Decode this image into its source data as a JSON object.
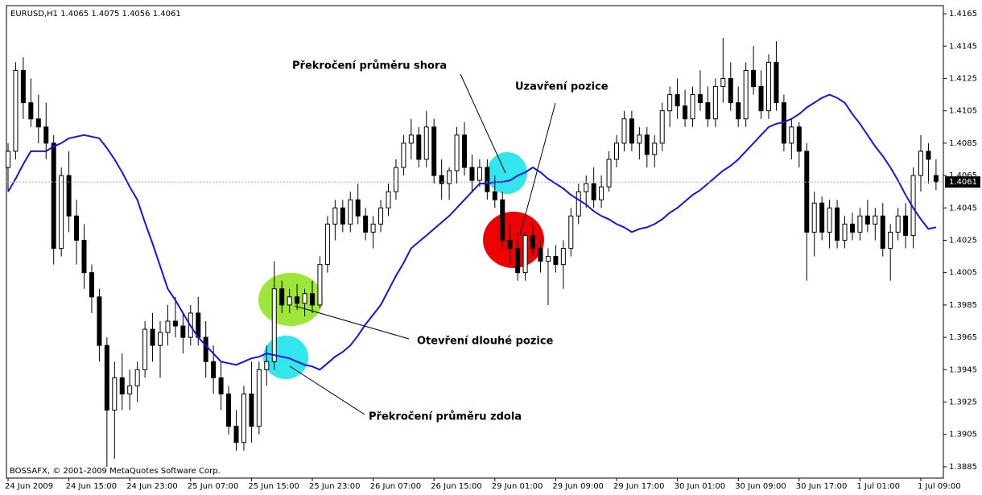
{
  "chart_data": {
    "type": "candlestick",
    "title": "EURUSD,H1  1.4065 1.4075 1.4056 1.4061",
    "footer": "BOSSAFX, © 2001-2009 MetaQuotes Software Corp.",
    "annotations": [
      "Překročení průměru shora",
      "Uzavření pozice",
      "Otevření dlouhé pozice",
      "Překročení průměru zdola"
    ],
    "ylim": [
      1.3878,
      1.417
    ],
    "yticks": [
      1.3885,
      1.3905,
      1.3925,
      1.3945,
      1.3965,
      1.3985,
      1.4005,
      1.4025,
      1.4045,
      1.4065,
      1.4085,
      1.4105,
      1.4125,
      1.4145,
      1.4165
    ],
    "up_color": "#ffffff",
    "down_color": "#000000",
    "categories": [
      "24 Jun 2009",
      null,
      null,
      null,
      null,
      null,
      null,
      null,
      "24 Jun 15:00",
      null,
      null,
      null,
      null,
      null,
      null,
      null,
      "24 Jun 23:00",
      null,
      null,
      null,
      null,
      null,
      null,
      null,
      "25 Jun 07:00",
      null,
      null,
      null,
      null,
      null,
      null,
      null,
      "25 Jun 15:00",
      null,
      null,
      null,
      null,
      null,
      null,
      null,
      "25 Jun 23:00",
      null,
      null,
      null,
      null,
      null,
      null,
      null,
      "26 Jun 07:00",
      null,
      null,
      null,
      null,
      null,
      null,
      null,
      "26 Jun 15:00",
      null,
      null,
      null,
      null,
      null,
      null,
      null,
      "29 Jun 01:00",
      null,
      null,
      null,
      null,
      null,
      null,
      null,
      "29 Jun 09:00",
      null,
      null,
      null,
      null,
      null,
      null,
      null,
      "29 Jun 17:00",
      null,
      null,
      null,
      null,
      null,
      null,
      null,
      "30 Jun 01:00",
      null,
      null,
      null,
      null,
      null,
      null,
      null,
      "30 Jun 09:00",
      null,
      null,
      null,
      null,
      null,
      null,
      null,
      "30 Jun 17:00",
      null,
      null,
      null,
      null,
      null,
      null,
      null,
      "1 Jul 01:00",
      null,
      null,
      null,
      null,
      null,
      null,
      null,
      "1 Jul 09:00",
      null,
      null
    ],
    "candles": [
      [
        1.407,
        1.4085,
        1.4055,
        1.408
      ],
      [
        1.408,
        1.4135,
        1.4075,
        1.413
      ],
      [
        1.413,
        1.4138,
        1.41,
        1.411
      ],
      [
        1.411,
        1.4125,
        1.4095,
        1.41
      ],
      [
        1.41,
        1.4115,
        1.4085,
        1.4095
      ],
      [
        1.4095,
        1.411,
        1.4075,
        1.4085
      ],
      [
        1.4085,
        1.409,
        1.401,
        1.402
      ],
      [
        1.402,
        1.407,
        1.4015,
        1.4065
      ],
      [
        1.4065,
        1.408,
        1.403,
        1.404
      ],
      [
        1.404,
        1.405,
        1.401,
        1.4025
      ],
      [
        1.4025,
        1.4035,
        1.3995,
        1.4005
      ],
      [
        1.4005,
        1.401,
        1.398,
        1.399
      ],
      [
        1.399,
        1.3995,
        1.395,
        1.396
      ],
      [
        1.396,
        1.3965,
        1.3885,
        1.392
      ],
      [
        1.392,
        1.395,
        1.389,
        1.394
      ],
      [
        1.394,
        1.3955,
        1.392,
        1.393
      ],
      [
        1.393,
        1.3945,
        1.392,
        1.3935
      ],
      [
        1.3935,
        1.395,
        1.3925,
        1.3945
      ],
      [
        1.3945,
        1.3975,
        1.394,
        1.397
      ],
      [
        1.397,
        1.398,
        1.395,
        1.396
      ],
      [
        1.396,
        1.3975,
        1.394,
        1.3968
      ],
      [
        1.3968,
        1.3985,
        1.396,
        1.3975
      ],
      [
        1.3975,
        1.399,
        1.3965,
        1.3972
      ],
      [
        1.3972,
        1.398,
        1.3955,
        1.3965
      ],
      [
        1.3965,
        1.3985,
        1.396,
        1.398
      ],
      [
        1.398,
        1.399,
        1.396,
        1.3965
      ],
      [
        1.3965,
        1.3975,
        1.394,
        1.395
      ],
      [
        1.395,
        1.396,
        1.393,
        1.394
      ],
      [
        1.394,
        1.395,
        1.392,
        1.393
      ],
      [
        1.393,
        1.3935,
        1.3905,
        1.391
      ],
      [
        1.391,
        1.392,
        1.3895,
        1.39
      ],
      [
        1.39,
        1.3935,
        1.3895,
        1.393
      ],
      [
        1.393,
        1.395,
        1.39,
        1.391
      ],
      [
        1.391,
        1.395,
        1.3905,
        1.3945
      ],
      [
        1.3945,
        1.396,
        1.3935,
        1.395
      ],
      [
        1.395,
        1.4012,
        1.3945,
        1.3995
      ],
      [
        1.3995,
        1.4,
        1.398,
        1.3985
      ],
      [
        1.3985,
        1.3995,
        1.398,
        1.399
      ],
      [
        1.399,
        1.3998,
        1.3982,
        1.3986
      ],
      [
        1.3986,
        1.3995,
        1.3978,
        1.3992
      ],
      [
        1.3992,
        1.4,
        1.398,
        1.3985
      ],
      [
        1.3985,
        1.4015,
        1.3983,
        1.401
      ],
      [
        1.401,
        1.404,
        1.4005,
        1.4035
      ],
      [
        1.4035,
        1.405,
        1.4025,
        1.4045
      ],
      [
        1.4045,
        1.405,
        1.403,
        1.4035
      ],
      [
        1.4035,
        1.4055,
        1.403,
        1.405
      ],
      [
        1.405,
        1.406,
        1.4035,
        1.404
      ],
      [
        1.404,
        1.4045,
        1.4025,
        1.403
      ],
      [
        1.403,
        1.404,
        1.402,
        1.4035
      ],
      [
        1.4035,
        1.405,
        1.403,
        1.4045
      ],
      [
        1.4045,
        1.406,
        1.404,
        1.4055
      ],
      [
        1.4055,
        1.4075,
        1.405,
        1.407
      ],
      [
        1.407,
        1.409,
        1.4065,
        1.4085
      ],
      [
        1.4085,
        1.41,
        1.4075,
        1.409
      ],
      [
        1.409,
        1.4095,
        1.407,
        1.4075
      ],
      [
        1.4075,
        1.4105,
        1.407,
        1.4095
      ],
      [
        1.4095,
        1.41,
        1.406,
        1.4065
      ],
      [
        1.4065,
        1.4075,
        1.405,
        1.406
      ],
      [
        1.406,
        1.407,
        1.405,
        1.4068
      ],
      [
        1.4068,
        1.4095,
        1.406,
        1.409
      ],
      [
        1.409,
        1.4098,
        1.4065,
        1.407
      ],
      [
        1.407,
        1.4078,
        1.4055,
        1.4062
      ],
      [
        1.4062,
        1.4075,
        1.4058,
        1.407
      ],
      [
        1.407,
        1.4075,
        1.405,
        1.4055
      ],
      [
        1.4055,
        1.4065,
        1.4045,
        1.405
      ],
      [
        1.405,
        1.4055,
        1.402,
        1.4025
      ],
      [
        1.4025,
        1.4035,
        1.401,
        1.402
      ],
      [
        1.402,
        1.403,
        1.4,
        1.4005
      ],
      [
        1.4005,
        1.403,
        1.4,
        1.4028
      ],
      [
        1.4028,
        1.4035,
        1.4015,
        1.402
      ],
      [
        1.402,
        1.4025,
        1.4005,
        1.4012
      ],
      [
        1.4012,
        1.402,
        1.3985,
        1.4015
      ],
      [
        1.4015,
        1.4022,
        1.4005,
        1.401
      ],
      [
        1.401,
        1.4025,
        1.3995,
        1.402
      ],
      [
        1.402,
        1.4045,
        1.4015,
        1.404
      ],
      [
        1.404,
        1.406,
        1.4035,
        1.4055
      ],
      [
        1.4055,
        1.4065,
        1.4045,
        1.406
      ],
      [
        1.406,
        1.407,
        1.4045,
        1.405
      ],
      [
        1.405,
        1.4065,
        1.4045,
        1.4058
      ],
      [
        1.4058,
        1.408,
        1.4055,
        1.4075
      ],
      [
        1.4075,
        1.409,
        1.407,
        1.4085
      ],
      [
        1.4085,
        1.4105,
        1.408,
        1.41
      ],
      [
        1.41,
        1.4105,
        1.408,
        1.4085
      ],
      [
        1.4085,
        1.4095,
        1.4075,
        1.409
      ],
      [
        1.409,
        1.4095,
        1.407,
        1.4078
      ],
      [
        1.4078,
        1.409,
        1.407,
        1.4085
      ],
      [
        1.4085,
        1.411,
        1.408,
        1.4105
      ],
      [
        1.4105,
        1.412,
        1.4095,
        1.4115
      ],
      [
        1.4115,
        1.4125,
        1.41,
        1.4108
      ],
      [
        1.4108,
        1.4118,
        1.4095,
        1.41
      ],
      [
        1.41,
        1.412,
        1.4095,
        1.4115
      ],
      [
        1.4115,
        1.413,
        1.4105,
        1.411
      ],
      [
        1.411,
        1.412,
        1.4095,
        1.41
      ],
      [
        1.41,
        1.4125,
        1.4095,
        1.412
      ],
      [
        1.412,
        1.415,
        1.411,
        1.4125
      ],
      [
        1.4125,
        1.4135,
        1.4105,
        1.411
      ],
      [
        1.411,
        1.412,
        1.4095,
        1.41
      ],
      [
        1.41,
        1.4135,
        1.4095,
        1.413
      ],
      [
        1.413,
        1.4145,
        1.4115,
        1.412
      ],
      [
        1.412,
        1.413,
        1.41,
        1.4105
      ],
      [
        1.4105,
        1.414,
        1.41,
        1.4135
      ],
      [
        1.4135,
        1.4148,
        1.4105,
        1.411
      ],
      [
        1.411,
        1.4115,
        1.408,
        1.4085
      ],
      [
        1.4085,
        1.41,
        1.4075,
        1.4095
      ],
      [
        1.4095,
        1.4098,
        1.407,
        1.408
      ],
      [
        1.408,
        1.4085,
        1.4,
        1.403
      ],
      [
        1.403,
        1.4055,
        1.4015,
        1.4048
      ],
      [
        1.4048,
        1.4052,
        1.4025,
        1.403
      ],
      [
        1.403,
        1.405,
        1.402,
        1.4045
      ],
      [
        1.4045,
        1.405,
        1.402,
        1.4025
      ],
      [
        1.4025,
        1.404,
        1.402,
        1.4035
      ],
      [
        1.4035,
        1.4042,
        1.4025,
        1.403
      ],
      [
        1.403,
        1.4045,
        1.4025,
        1.404
      ],
      [
        1.404,
        1.405,
        1.403,
        1.4035
      ],
      [
        1.4035,
        1.4045,
        1.4025,
        1.404
      ],
      [
        1.404,
        1.4048,
        1.4015,
        1.402
      ],
      [
        1.402,
        1.4035,
        1.4,
        1.403
      ],
      [
        1.403,
        1.4045,
        1.4025,
        1.404
      ],
      [
        1.404,
        1.4048,
        1.402,
        1.4028
      ],
      [
        1.4028,
        1.407,
        1.402,
        1.4065
      ],
      [
        1.4065,
        1.409,
        1.4055,
        1.408
      ],
      [
        1.408,
        1.4085,
        1.406,
        1.4075
      ],
      [
        1.4065,
        1.4075,
        1.4056,
        1.4061
      ]
    ],
    "line": {
      "color": "#1414e6",
      "values": [
        1.4055,
        1.4063,
        1.4072,
        1.408,
        1.408,
        1.408,
        1.4083,
        1.4085,
        1.4088,
        1.4089,
        1.409,
        1.4089,
        1.4088,
        1.4082,
        1.4075,
        1.4067,
        1.4058,
        1.405,
        1.4036,
        1.4023,
        1.4009,
        1.3995,
        1.3988,
        1.398,
        1.3972,
        1.3965,
        1.396,
        1.3955,
        1.395,
        1.3949,
        1.3948,
        1.395,
        1.3952,
        1.3953,
        1.3955,
        1.3954,
        1.3953,
        1.3952,
        1.395,
        1.3948,
        1.3947,
        1.3945,
        1.3949,
        1.3953,
        1.3956,
        1.396,
        1.3966,
        1.3973,
        1.3979,
        1.3985,
        1.3994,
        1.4003,
        1.4011,
        1.402,
        1.4024,
        1.4028,
        1.4032,
        1.4036,
        1.404,
        1.4045,
        1.405,
        1.4055,
        1.406,
        1.406,
        1.4061,
        1.4061,
        1.4062,
        1.4065,
        1.4067,
        1.407,
        1.4067,
        1.4063,
        1.406,
        1.4057,
        1.4053,
        1.405,
        1.4047,
        1.4043,
        1.404,
        1.4038,
        1.4035,
        1.4033,
        1.403,
        1.4032,
        1.4033,
        1.4035,
        1.4038,
        1.4042,
        1.4045,
        1.4049,
        1.4053,
        1.4056,
        1.406,
        1.4064,
        1.4068,
        1.4071,
        1.4075,
        1.408,
        1.4085,
        1.409,
        1.4095,
        1.4097,
        1.4098,
        1.41,
        1.4103,
        1.4107,
        1.411,
        1.4113,
        1.4115,
        1.4113,
        1.411,
        1.4103,
        1.4097,
        1.409,
        1.4083,
        1.4077,
        1.407,
        1.4062,
        1.4053,
        1.4045,
        1.4038,
        1.4032,
        1.4033
      ]
    }
  }
}
